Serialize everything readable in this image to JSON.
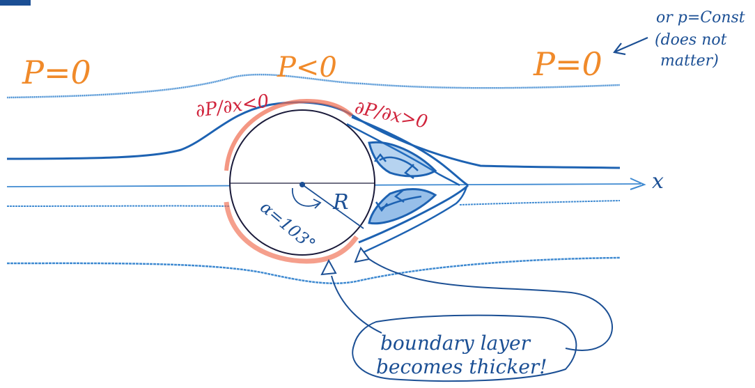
{
  "colors": {
    "paper": "#ffffff",
    "ink_blue": "#1b4f94",
    "flow_light": "#3f8ad1",
    "flow_dark": "#1d62b2",
    "wake_fill": "#2f80d3",
    "pressure_orange": "#f08a2a",
    "gradient_red": "#d0243c",
    "boundary_layer": "#ef6b4f",
    "pencil": "#1a1a3a"
  },
  "pressure_labels": {
    "left": "P=0",
    "top": "P<0",
    "right": "P=0"
  },
  "gradient_labels": {
    "favorable": "∂P/∂x<0",
    "adverse": "∂P/∂x>0"
  },
  "note_topright": {
    "line1": "or p=Const",
    "line2": "(does not",
    "line3": "matter)"
  },
  "cylinder": {
    "radius_label": "R",
    "angle_label": "α=103°"
  },
  "axis": {
    "label": "x"
  },
  "callout": {
    "line1": "boundary layer",
    "line2": "becomes thicker!"
  },
  "icons": {
    "cylinder": "cylinder-shape",
    "wake": "separation-vortex",
    "arrow": "pointer-arrow"
  }
}
